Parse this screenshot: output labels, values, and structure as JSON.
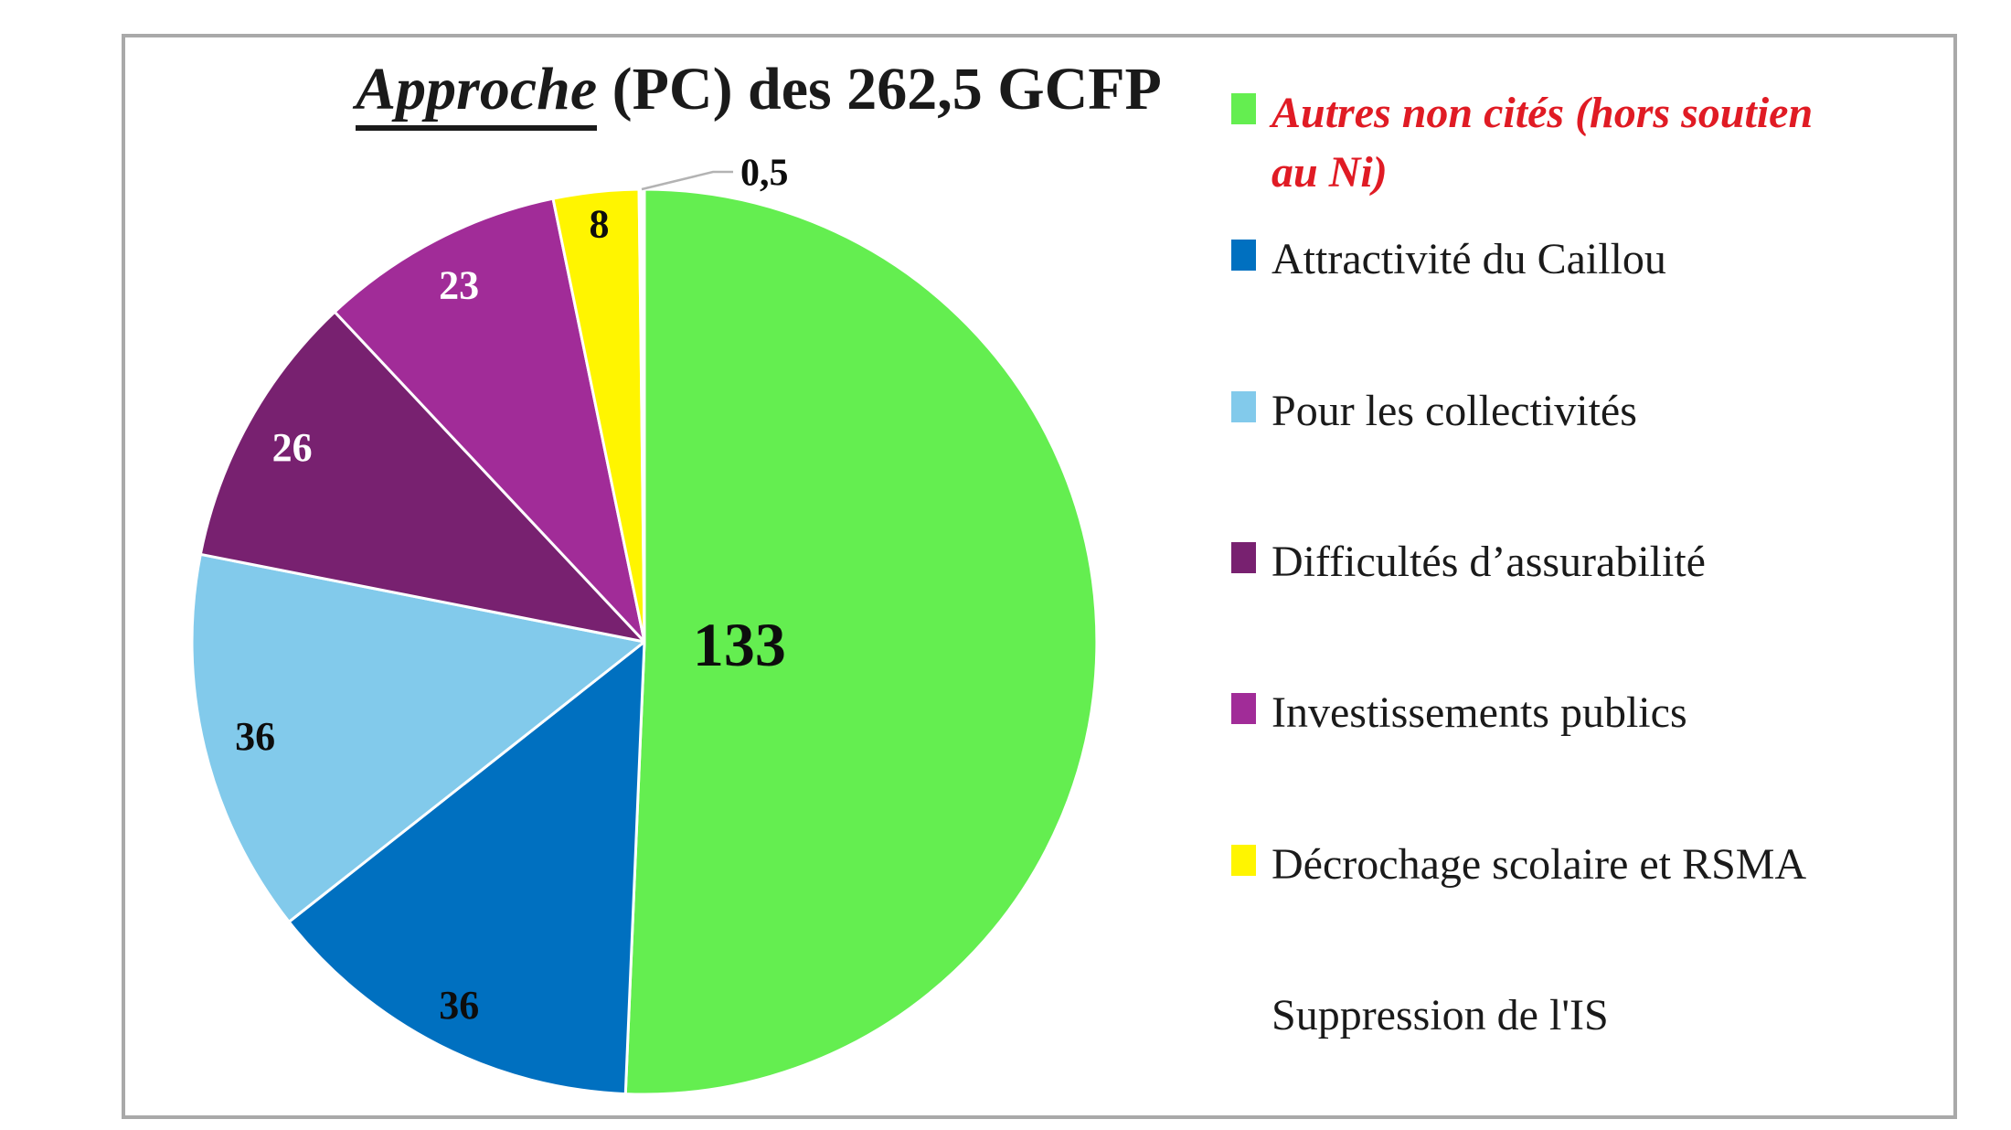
{
  "title": {
    "emphasis": "Approche",
    "rest": " (PC) des 262,5 GCFP",
    "color": "#1a1a1a"
  },
  "frame": {
    "border_color": "#a9a9a9"
  },
  "chart_data": {
    "type": "pie",
    "title": "Approche (PC) des 262,5 GCFP",
    "total": 262.5,
    "unit": "GCFP",
    "direction": "clockwise",
    "start_angle_deg": 0,
    "legend_position": "right",
    "slices": [
      {
        "name": "Autres non cités (hors soutien au Ni)",
        "value": 133,
        "display": "133",
        "color": "#64EE50",
        "label_color": "#0d0d0d",
        "label_radius": 0.21,
        "label_size": 68
      },
      {
        "name": "Attractivité du Caillou",
        "value": 36,
        "display": "36",
        "color": "#0070C0",
        "label_color": "#0d0d0d",
        "label_radius": 0.9,
        "label_size": 44
      },
      {
        "name": "Pour les collectivités",
        "value": 36,
        "display": "36",
        "color": "#82CAEB",
        "label_color": "#0d0d0d",
        "label_radius": 0.885,
        "label_size": 44
      },
      {
        "name": "Difficultés d’assurabilité",
        "value": 26,
        "display": "26",
        "color": "#782170",
        "label_color": "#ffffff",
        "label_radius": 0.89,
        "label_size": 44
      },
      {
        "name": "Investissements publics",
        "value": 23,
        "display": "23",
        "color": "#A12C98",
        "label_color": "#ffffff",
        "label_radius": 0.89,
        "label_size": 44
      },
      {
        "name": "Décrochage scolaire et RSMA",
        "value": 8,
        "display": "8",
        "color": "#FFF500",
        "label_color": "#0d0d0d",
        "label_radius": 0.93,
        "label_size": 44
      },
      {
        "name": "Suppression de l'IS",
        "value": 0.5,
        "display": "0,5",
        "color": "#FFFFFF",
        "label_color": "#0d0d0d",
        "label_size": 42,
        "outside": true
      }
    ]
  },
  "legend": {
    "items": [
      {
        "label": "Autres non cités (hors soutien\nau Ni)",
        "swatch": "#64EE50",
        "text_color": "#E01B24",
        "bold": true,
        "italic": true
      },
      {
        "label": "Attractivité du Caillou",
        "swatch": "#0070C0",
        "text_color": "#1a1a1a",
        "bold": false,
        "italic": false
      },
      {
        "label": "Pour les collectivités",
        "swatch": "#82CAEB",
        "text_color": "#1a1a1a",
        "bold": false,
        "italic": false
      },
      {
        "label": "Difficultés d’assurabilité",
        "swatch": "#782170",
        "text_color": "#1a1a1a",
        "bold": false,
        "italic": false
      },
      {
        "label": "Investissements publics",
        "swatch": "#A12C98",
        "text_color": "#1a1a1a",
        "bold": false,
        "italic": false
      },
      {
        "label": "Décrochage scolaire et RSMA",
        "swatch": "#FFF500",
        "text_color": "#1a1a1a",
        "bold": false,
        "italic": false
      },
      {
        "label": "Suppression de l'IS",
        "swatch": "#FFFFFF",
        "text_color": "#1a1a1a",
        "bold": false,
        "italic": false
      }
    ]
  },
  "leader": {
    "color": "#b3b3b3"
  }
}
